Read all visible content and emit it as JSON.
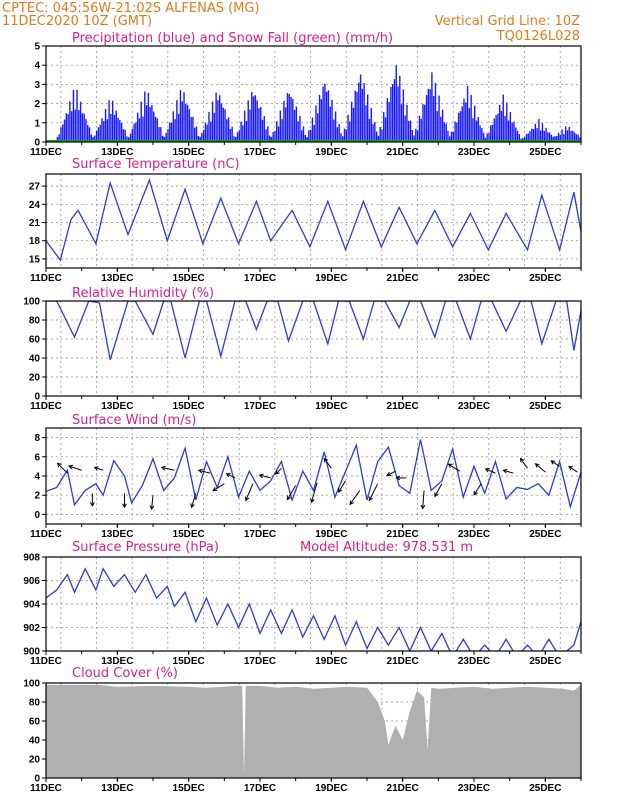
{
  "header": {
    "line1_left": "CPTEC:   045:56W-21:02S   ALFENAS (MG)",
    "line2_left": "11DEC2020 10Z (GMT)",
    "line2_right": "Vertical Grid Line: 10Z",
    "line3_right": "TQ0126L028"
  },
  "colors": {
    "line": "#2b3bd6",
    "bars": "#1a1aff",
    "snow": "#00aa00",
    "cloud": "#b0b0b0",
    "title": "#d6208a",
    "header": "#e07a1e",
    "arrow": "#000000",
    "grid": "#888888"
  },
  "chart_data": [
    {
      "id": "precip",
      "type": "bar",
      "title": "Precipitation (blue) and Snow Fall (green) (mm/h)",
      "ylim": [
        0,
        5
      ],
      "yticks": [
        0,
        1,
        2,
        3,
        4,
        5
      ],
      "xticks": [
        "11DEC",
        "13DEC",
        "15DEC",
        "17DEC",
        "19DEC",
        "21DEC",
        "23DEC",
        "25DEC"
      ],
      "x_days": [
        11,
        26
      ],
      "series": [
        {
          "day_peaks": [
            {
              "day": 11.8,
              "peak": 3.0
            },
            {
              "day": 12.8,
              "peak": 2.4
            },
            {
              "day": 13.8,
              "peak": 2.9
            },
            {
              "day": 14.8,
              "peak": 3.0
            },
            {
              "day": 15.8,
              "peak": 2.9
            },
            {
              "day": 16.8,
              "peak": 3.0
            },
            {
              "day": 17.8,
              "peak": 3.0
            },
            {
              "day": 18.8,
              "peak": 3.5
            },
            {
              "day": 19.8,
              "peak": 3.9
            },
            {
              "day": 20.8,
              "peak": 4.3
            },
            {
              "day": 21.8,
              "peak": 3.8
            },
            {
              "day": 22.8,
              "peak": 3.0
            },
            {
              "day": 23.8,
              "peak": 2.5
            },
            {
              "day": 24.8,
              "peak": 1.2
            },
            {
              "day": 25.6,
              "peak": 0.9
            }
          ]
        },
        {
          "values": [
            0
          ]
        }
      ]
    },
    {
      "id": "temperature",
      "type": "line",
      "title": "Surface Temperature (nC)",
      "ylim": [
        13.5,
        29
      ],
      "yticks": [
        15,
        18,
        21,
        24,
        27
      ],
      "xticks": [
        "11DEC",
        "13DEC",
        "15DEC",
        "17DEC",
        "19DEC",
        "21DEC",
        "23DEC",
        "25DEC"
      ],
      "x_days": [
        11,
        26
      ],
      "points": [
        [
          11,
          18
        ],
        [
          11.4,
          14.8
        ],
        [
          11.7,
          21.5
        ],
        [
          11.9,
          23
        ],
        [
          12.4,
          17.5
        ],
        [
          12.8,
          27.5
        ],
        [
          13.3,
          19
        ],
        [
          13.9,
          28
        ],
        [
          14.4,
          18
        ],
        [
          14.9,
          26.5
        ],
        [
          15.4,
          17.5
        ],
        [
          15.9,
          25
        ],
        [
          16.4,
          17.5
        ],
        [
          16.9,
          24.5
        ],
        [
          17.3,
          18
        ],
        [
          17.9,
          23
        ],
        [
          18.4,
          17
        ],
        [
          18.9,
          24.5
        ],
        [
          19.4,
          16.5
        ],
        [
          19.9,
          24.5
        ],
        [
          20.4,
          17
        ],
        [
          20.9,
          23.5
        ],
        [
          21.4,
          17.5
        ],
        [
          21.9,
          23
        ],
        [
          22.4,
          17
        ],
        [
          22.9,
          22.5
        ],
        [
          23.4,
          16.5
        ],
        [
          23.9,
          22.5
        ],
        [
          24.5,
          16.5
        ],
        [
          24.9,
          25.5
        ],
        [
          25.4,
          16.5
        ],
        [
          25.8,
          26
        ],
        [
          26,
          19.5
        ]
      ]
    },
    {
      "id": "humidity",
      "type": "line",
      "title": "Relative Humidity (%)",
      "ylim": [
        0,
        100
      ],
      "yticks": [
        0,
        20,
        40,
        60,
        80,
        100
      ],
      "xticks": [
        "11DEC",
        "13DEC",
        "15DEC",
        "17DEC",
        "19DEC",
        "21DEC",
        "23DEC",
        "25DEC"
      ],
      "x_days": [
        11,
        26
      ],
      "points": [
        [
          11,
          100
        ],
        [
          11.3,
          100
        ],
        [
          11.8,
          62
        ],
        [
          12.2,
          100
        ],
        [
          12.5,
          98
        ],
        [
          12.8,
          38
        ],
        [
          13.3,
          100
        ],
        [
          13.5,
          100
        ],
        [
          14.0,
          65
        ],
        [
          14.3,
          100
        ],
        [
          14.5,
          100
        ],
        [
          14.9,
          40
        ],
        [
          15.3,
          100
        ],
        [
          15.5,
          100
        ],
        [
          15.9,
          42
        ],
        [
          16.3,
          100
        ],
        [
          16.6,
          100
        ],
        [
          16.9,
          70
        ],
        [
          17.2,
          100
        ],
        [
          17.5,
          100
        ],
        [
          17.8,
          58
        ],
        [
          18.2,
          100
        ],
        [
          18.5,
          100
        ],
        [
          18.9,
          55
        ],
        [
          19.2,
          100
        ],
        [
          19.5,
          100
        ],
        [
          19.9,
          60
        ],
        [
          20.2,
          100
        ],
        [
          20.5,
          100
        ],
        [
          20.9,
          72
        ],
        [
          21.2,
          100
        ],
        [
          21.5,
          100
        ],
        [
          21.9,
          62
        ],
        [
          22.2,
          100
        ],
        [
          22.5,
          100
        ],
        [
          22.9,
          60
        ],
        [
          23.2,
          100
        ],
        [
          23.5,
          100
        ],
        [
          23.9,
          68
        ],
        [
          24.3,
          100
        ],
        [
          24.6,
          100
        ],
        [
          24.9,
          55
        ],
        [
          25.3,
          100
        ],
        [
          25.6,
          100
        ],
        [
          25.8,
          48
        ],
        [
          26,
          90
        ]
      ]
    },
    {
      "id": "wind",
      "type": "line",
      "title": "Surface Wind (m/s)",
      "ylim": [
        -1,
        9
      ],
      "yticks": [
        0,
        2,
        4,
        6,
        8
      ],
      "xticks": [
        "11DEC",
        "13DEC",
        "15DEC",
        "17DEC",
        "19DEC",
        "21DEC",
        "23DEC",
        "25DEC"
      ],
      "x_days": [
        11,
        26
      ],
      "points": [
        [
          11,
          2.4
        ],
        [
          11.3,
          2.8
        ],
        [
          11.6,
          4.6
        ],
        [
          11.8,
          1.0
        ],
        [
          12.1,
          2.5
        ],
        [
          12.4,
          3.2
        ],
        [
          12.6,
          2.0
        ],
        [
          12.9,
          5.6
        ],
        [
          13.2,
          4.0
        ],
        [
          13.4,
          1.2
        ],
        [
          13.7,
          3.0
        ],
        [
          14.0,
          5.8
        ],
        [
          14.3,
          2.5
        ],
        [
          14.6,
          3.8
        ],
        [
          14.9,
          6.9
        ],
        [
          15.2,
          1.5
        ],
        [
          15.5,
          5.5
        ],
        [
          15.8,
          2.8
        ],
        [
          16.1,
          6.0
        ],
        [
          16.4,
          1.8
        ],
        [
          16.7,
          4.5
        ],
        [
          17.0,
          2.5
        ],
        [
          17.3,
          3.5
        ],
        [
          17.6,
          5.5
        ],
        [
          17.9,
          1.5
        ],
        [
          18.2,
          4.5
        ],
        [
          18.5,
          2.5
        ],
        [
          18.8,
          6.5
        ],
        [
          19.1,
          1.8
        ],
        [
          19.4,
          4.5
        ],
        [
          19.7,
          7.2
        ],
        [
          20.0,
          1.5
        ],
        [
          20.3,
          5.5
        ],
        [
          20.6,
          7.0
        ],
        [
          20.9,
          3.0
        ],
        [
          21.2,
          2.2
        ],
        [
          21.5,
          7.8
        ],
        [
          21.8,
          2.5
        ],
        [
          22.1,
          3.5
        ],
        [
          22.4,
          6.8
        ],
        [
          22.7,
          1.8
        ],
        [
          23.0,
          5.0
        ],
        [
          23.3,
          2.2
        ],
        [
          23.6,
          5.5
        ],
        [
          23.9,
          1.6
        ],
        [
          24.2,
          2.8
        ],
        [
          24.5,
          2.6
        ],
        [
          24.8,
          3.2
        ],
        [
          25.1,
          2.0
        ],
        [
          25.4,
          5.5
        ],
        [
          25.7,
          0.8
        ],
        [
          26,
          4.4
        ]
      ],
      "arrows": [
        [
          11.6,
          4.3,
          -0.7,
          0.7
        ],
        [
          12.0,
          4.6,
          -0.9,
          0.3
        ],
        [
          12.3,
          2.2,
          0,
          -0.9
        ],
        [
          12.6,
          4.6,
          -0.6,
          0.2
        ],
        [
          13.2,
          2.2,
          0,
          -1.0
        ],
        [
          14.0,
          2.0,
          -0.1,
          -1.0
        ],
        [
          14.6,
          4.6,
          -0.9,
          0.2
        ],
        [
          15.2,
          2.2,
          -0.3,
          -1.0
        ],
        [
          15.6,
          4.3,
          -0.8,
          0.2
        ],
        [
          16.0,
          3.2,
          -0.8,
          -0.5
        ],
        [
          16.3,
          3.8,
          -0.6,
          0.3
        ],
        [
          16.8,
          3.2,
          -0.5,
          -1.2
        ],
        [
          17.3,
          3.8,
          -0.8,
          0.2
        ],
        [
          17.6,
          4.8,
          -0.4,
          -0.4
        ],
        [
          18.0,
          3.0,
          -0.6,
          -1.0
        ],
        [
          18.6,
          3.3,
          -0.4,
          -1.4
        ],
        [
          19.0,
          4.8,
          -0.5,
          0.7
        ],
        [
          19.4,
          3.5,
          -0.5,
          -0.8
        ],
        [
          19.8,
          2.5,
          -0.7,
          -1.0
        ],
        [
          20.3,
          3.2,
          -0.6,
          -1.2
        ],
        [
          20.8,
          4.5,
          -0.6,
          -0.3
        ],
        [
          21.1,
          3.8,
          -0.7,
          0
        ],
        [
          21.6,
          2.5,
          -0.1,
          -1.3
        ],
        [
          22.1,
          3.2,
          -0.5,
          -0.9
        ],
        [
          22.6,
          4.5,
          -0.8,
          0.5
        ],
        [
          23.2,
          3.2,
          -0.5,
          -0.8
        ],
        [
          23.6,
          4.3,
          -0.7,
          0.3
        ],
        [
          24.1,
          4.3,
          -0.7,
          0.2
        ],
        [
          24.5,
          4.8,
          -0.5,
          0.7
        ],
        [
          25.0,
          4.4,
          -0.7,
          0.6
        ],
        [
          25.4,
          5.0,
          -0.6,
          0.4
        ],
        [
          25.9,
          4.4,
          -0.6,
          0.4
        ]
      ]
    },
    {
      "id": "pressure",
      "type": "line",
      "title": "Surface Pressure (hPa)",
      "subtitle": "Model Altitude: 978.531 m",
      "ylim": [
        900,
        908
      ],
      "yticks": [
        900,
        902,
        904,
        906,
        908
      ],
      "xticks": [
        "11DEC",
        "13DEC",
        "15DEC",
        "17DEC",
        "19DEC",
        "21DEC",
        "23DEC",
        "25DEC"
      ],
      "x_days": [
        11,
        26
      ],
      "points": [
        [
          11,
          904.5
        ],
        [
          11.3,
          905.2
        ],
        [
          11.6,
          906.5
        ],
        [
          11.8,
          905.0
        ],
        [
          12.1,
          907.0
        ],
        [
          12.4,
          905.2
        ],
        [
          12.6,
          907.0
        ],
        [
          12.9,
          905.5
        ],
        [
          13.2,
          906.5
        ],
        [
          13.5,
          905.0
        ],
        [
          13.8,
          906.5
        ],
        [
          14.1,
          904.5
        ],
        [
          14.4,
          905.5
        ],
        [
          14.6,
          903.8
        ],
        [
          14.9,
          905.0
        ],
        [
          15.2,
          902.5
        ],
        [
          15.5,
          904.5
        ],
        [
          15.8,
          902.2
        ],
        [
          16.1,
          904.0
        ],
        [
          16.4,
          902.0
        ],
        [
          16.7,
          904.0
        ],
        [
          17.0,
          901.5
        ],
        [
          17.3,
          903.5
        ],
        [
          17.6,
          901.5
        ],
        [
          17.9,
          903.5
        ],
        [
          18.2,
          901.2
        ],
        [
          18.5,
          903.0
        ],
        [
          18.8,
          901.0
        ],
        [
          19.1,
          903.0
        ],
        [
          19.4,
          900.5
        ],
        [
          19.7,
          902.5
        ],
        [
          20.0,
          900.2
        ],
        [
          20.3,
          902.0
        ],
        [
          20.6,
          900.5
        ],
        [
          20.9,
          902.0
        ],
        [
          21.2,
          900.0
        ],
        [
          21.5,
          902.0
        ],
        [
          21.8,
          900.0
        ],
        [
          22.1,
          901.5
        ],
        [
          22.4,
          899.5
        ],
        [
          22.7,
          901.0
        ],
        [
          23.0,
          899.5
        ],
        [
          23.3,
          900.5
        ],
        [
          23.6,
          899.5
        ],
        [
          23.9,
          901.0
        ],
        [
          24.2,
          899.5
        ],
        [
          24.5,
          900.5
        ],
        [
          24.8,
          899.5
        ],
        [
          25.1,
          901.0
        ],
        [
          25.4,
          899.5
        ],
        [
          25.8,
          900.5
        ],
        [
          26,
          902.5
        ]
      ]
    },
    {
      "id": "cloud",
      "type": "area",
      "title": "Cloud Cover (%)",
      "ylim": [
        0,
        100
      ],
      "yticks": [
        0,
        20,
        40,
        60,
        80,
        100
      ],
      "xticks": [
        "11DEC",
        "13DEC",
        "15DEC",
        "17DEC",
        "19DEC",
        "21DEC",
        "23DEC",
        "25DEC"
      ],
      "x_days": [
        11,
        26
      ],
      "points": [
        [
          11,
          98
        ],
        [
          12.5,
          98
        ],
        [
          13,
          96
        ],
        [
          14,
          97
        ],
        [
          15,
          96
        ],
        [
          15.5,
          95
        ],
        [
          16,
          96
        ],
        [
          16.3,
          97
        ],
        [
          16.5,
          97
        ],
        [
          16.55,
          2
        ],
        [
          16.6,
          97
        ],
        [
          17,
          97
        ],
        [
          17.5,
          95
        ],
        [
          18,
          96
        ],
        [
          18.5,
          94
        ],
        [
          19,
          95
        ],
        [
          19.5,
          96
        ],
        [
          20,
          95
        ],
        [
          20.3,
          80
        ],
        [
          20.5,
          60
        ],
        [
          20.6,
          35
        ],
        [
          20.8,
          55
        ],
        [
          21,
          40
        ],
        [
          21.2,
          70
        ],
        [
          21.4,
          92
        ],
        [
          21.6,
          85
        ],
        [
          21.7,
          30
        ],
        [
          21.8,
          95
        ],
        [
          22,
          94
        ],
        [
          22.5,
          95
        ],
        [
          23,
          96
        ],
        [
          23.5,
          94
        ],
        [
          24,
          95
        ],
        [
          24.5,
          96
        ],
        [
          25,
          95
        ],
        [
          25.5,
          94
        ],
        [
          25.8,
          92
        ],
        [
          26,
          98
        ]
      ]
    }
  ]
}
